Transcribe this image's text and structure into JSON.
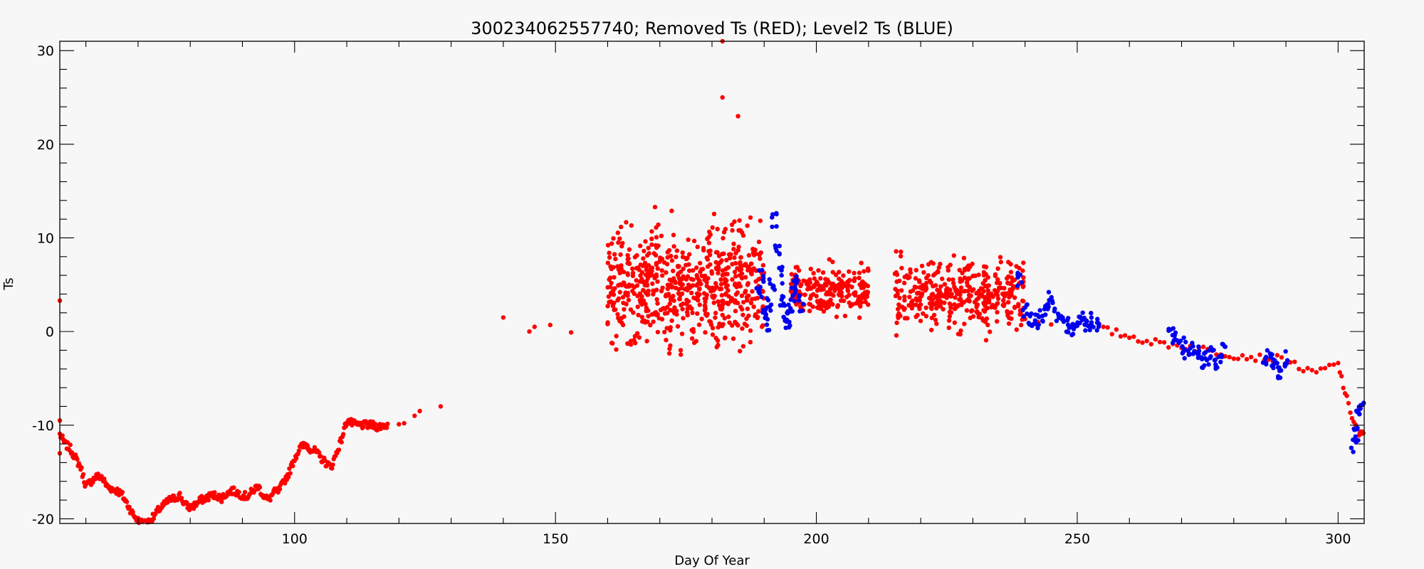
{
  "chart_data": {
    "type": "scatter",
    "title": "300234062557740; Removed Ts (RED); Level2 Ts (BLUE)",
    "xlabel": "Day Of Year",
    "ylabel": "Ts",
    "xlim": [
      55,
      305
    ],
    "ylim": [
      -20.5,
      31
    ],
    "xticks": [
      100,
      150,
      200,
      250,
      300
    ],
    "yticks": [
      -20,
      -10,
      0,
      10,
      20,
      30
    ],
    "grid": false,
    "series": [
      {
        "name": "Removed Ts (RED)",
        "color": "#ff0000",
        "render": "dense",
        "points": [
          [
            55,
            -11
          ],
          [
            56,
            -12
          ],
          [
            57,
            -12.5
          ],
          [
            58,
            -13.5
          ],
          [
            59,
            -14.5
          ],
          [
            60,
            -16.5
          ],
          [
            61,
            -16
          ],
          [
            62,
            -15.5
          ],
          [
            63,
            -15.5
          ],
          [
            64,
            -16.5
          ],
          [
            65,
            -16.8
          ],
          [
            66,
            -17
          ],
          [
            67,
            -17.5
          ],
          [
            68,
            -18.5
          ],
          [
            69,
            -19.5
          ],
          [
            70,
            -20.2
          ],
          [
            71,
            -20.5
          ],
          [
            72,
            -20.3
          ],
          [
            73,
            -19.8
          ],
          [
            74,
            -19
          ],
          [
            75,
            -18.5
          ],
          [
            76,
            -18
          ],
          [
            77,
            -17.8
          ],
          [
            78,
            -17.5
          ],
          [
            79,
            -18.5
          ],
          [
            80,
            -18.8
          ],
          [
            81,
            -18.5
          ],
          [
            82,
            -18
          ],
          [
            83,
            -17.8
          ],
          [
            84,
            -17.5
          ],
          [
            85,
            -17.5
          ],
          [
            86,
            -17.8
          ],
          [
            87,
            -17.3
          ],
          [
            88,
            -17
          ],
          [
            89,
            -17.2
          ],
          [
            90,
            -17.5
          ],
          [
            91,
            -17.6
          ],
          [
            92,
            -17
          ],
          [
            93,
            -16.5
          ],
          [
            94,
            -17.5
          ],
          [
            95,
            -18
          ],
          [
            96,
            -17.2
          ],
          [
            97,
            -17
          ],
          [
            98,
            -16
          ],
          [
            99,
            -15
          ],
          [
            100,
            -13.5
          ],
          [
            101,
            -12.5
          ],
          [
            102,
            -12
          ],
          [
            103,
            -12.5
          ],
          [
            104,
            -12.8
          ],
          [
            105,
            -13.5
          ],
          [
            106,
            -14
          ],
          [
            107,
            -14.5
          ],
          [
            108,
            -13
          ],
          [
            109,
            -11.5
          ],
          [
            110,
            -9.5
          ],
          [
            111,
            -9.8
          ],
          [
            112,
            -10
          ],
          [
            113,
            -10
          ],
          [
            114,
            -10
          ],
          [
            115,
            -10
          ],
          [
            116,
            -10.2
          ],
          [
            117,
            -10
          ],
          [
            118,
            -10
          ]
        ],
        "extra_points": [
          [
            55,
            3.3
          ],
          [
            55,
            -9.5
          ],
          [
            55,
            -13
          ],
          [
            120,
            -9.9
          ],
          [
            121,
            -9.8
          ],
          [
            123,
            -9
          ],
          [
            124,
            -8.5
          ],
          [
            128,
            -8
          ],
          [
            140,
            1.5
          ],
          [
            145,
            0
          ],
          [
            146,
            0.5
          ],
          [
            149,
            0.7
          ],
          [
            153,
            -0.1
          ],
          [
            160,
            0.8
          ],
          [
            172,
            -1.5
          ],
          [
            174,
            -2
          ],
          [
            182,
            31
          ],
          [
            182,
            25
          ],
          [
            185,
            23
          ]
        ],
        "cloud": [
          {
            "x": [
              160,
              190
            ],
            "y_center": 5,
            "spread": 6,
            "count": 650
          },
          {
            "x": [
              195,
              210
            ],
            "y_center": 4.5,
            "spread": 2.5,
            "count": 220
          },
          {
            "x": [
              215,
              240
            ],
            "y_center": 4,
            "spread": 3.5,
            "count": 380
          }
        ],
        "trend": [
          [
            240,
            1.5
          ],
          [
            255,
            0.2
          ],
          [
            260,
            -0.5
          ],
          [
            265,
            -1.2
          ],
          [
            270,
            -1.5
          ],
          [
            275,
            -2
          ],
          [
            280,
            -2.5
          ],
          [
            285,
            -2.8
          ],
          [
            290,
            -3
          ],
          [
            295,
            -4.5
          ],
          [
            300,
            -3.5
          ],
          [
            302,
            -8
          ],
          [
            304,
            -11
          ],
          [
            305,
            -11
          ]
        ]
      },
      {
        "name": "Level2 Ts (BLUE)",
        "color": "#0000ee",
        "render": "dense",
        "points": [
          [
            189,
            4
          ],
          [
            189.5,
            6
          ],
          [
            190,
            2
          ],
          [
            190.5,
            1
          ],
          [
            191,
            3
          ],
          [
            191.5,
            5
          ],
          [
            192,
            12
          ],
          [
            192.5,
            9
          ],
          [
            193,
            6
          ],
          [
            193.5,
            3
          ],
          [
            194,
            2
          ],
          [
            194.5,
            1
          ],
          [
            195,
            3
          ],
          [
            195.5,
            4
          ],
          [
            196,
            5
          ],
          [
            197,
            3
          ],
          [
            239,
            5.5
          ],
          [
            240,
            2
          ],
          [
            241,
            1.5
          ],
          [
            242,
            1
          ],
          [
            243,
            1.5
          ],
          [
            244,
            2.5
          ],
          [
            245,
            3.5
          ],
          [
            246,
            2
          ],
          [
            247,
            1.5
          ],
          [
            248,
            0.8
          ],
          [
            249,
            0.5
          ],
          [
            250,
            1
          ],
          [
            251,
            1.5
          ],
          [
            252,
            1
          ],
          [
            253,
            1.2
          ],
          [
            254,
            0.8
          ],
          [
            268,
            -0.5
          ],
          [
            269,
            -1
          ],
          [
            270,
            -1.5
          ],
          [
            271,
            -2
          ],
          [
            272,
            -1.8
          ],
          [
            273,
            -2.5
          ],
          [
            274,
            -3
          ],
          [
            275,
            -2.8
          ],
          [
            276,
            -2.2
          ],
          [
            277,
            -3.5
          ],
          [
            278,
            -2
          ],
          [
            286,
            -2.8
          ],
          [
            287,
            -3
          ],
          [
            288,
            -3.5
          ],
          [
            289,
            -4.5
          ],
          [
            290,
            -3
          ],
          [
            303,
            -12
          ],
          [
            303.5,
            -11
          ],
          [
            304,
            -9
          ],
          [
            304.5,
            -8
          ],
          [
            305,
            -7
          ]
        ]
      }
    ]
  }
}
